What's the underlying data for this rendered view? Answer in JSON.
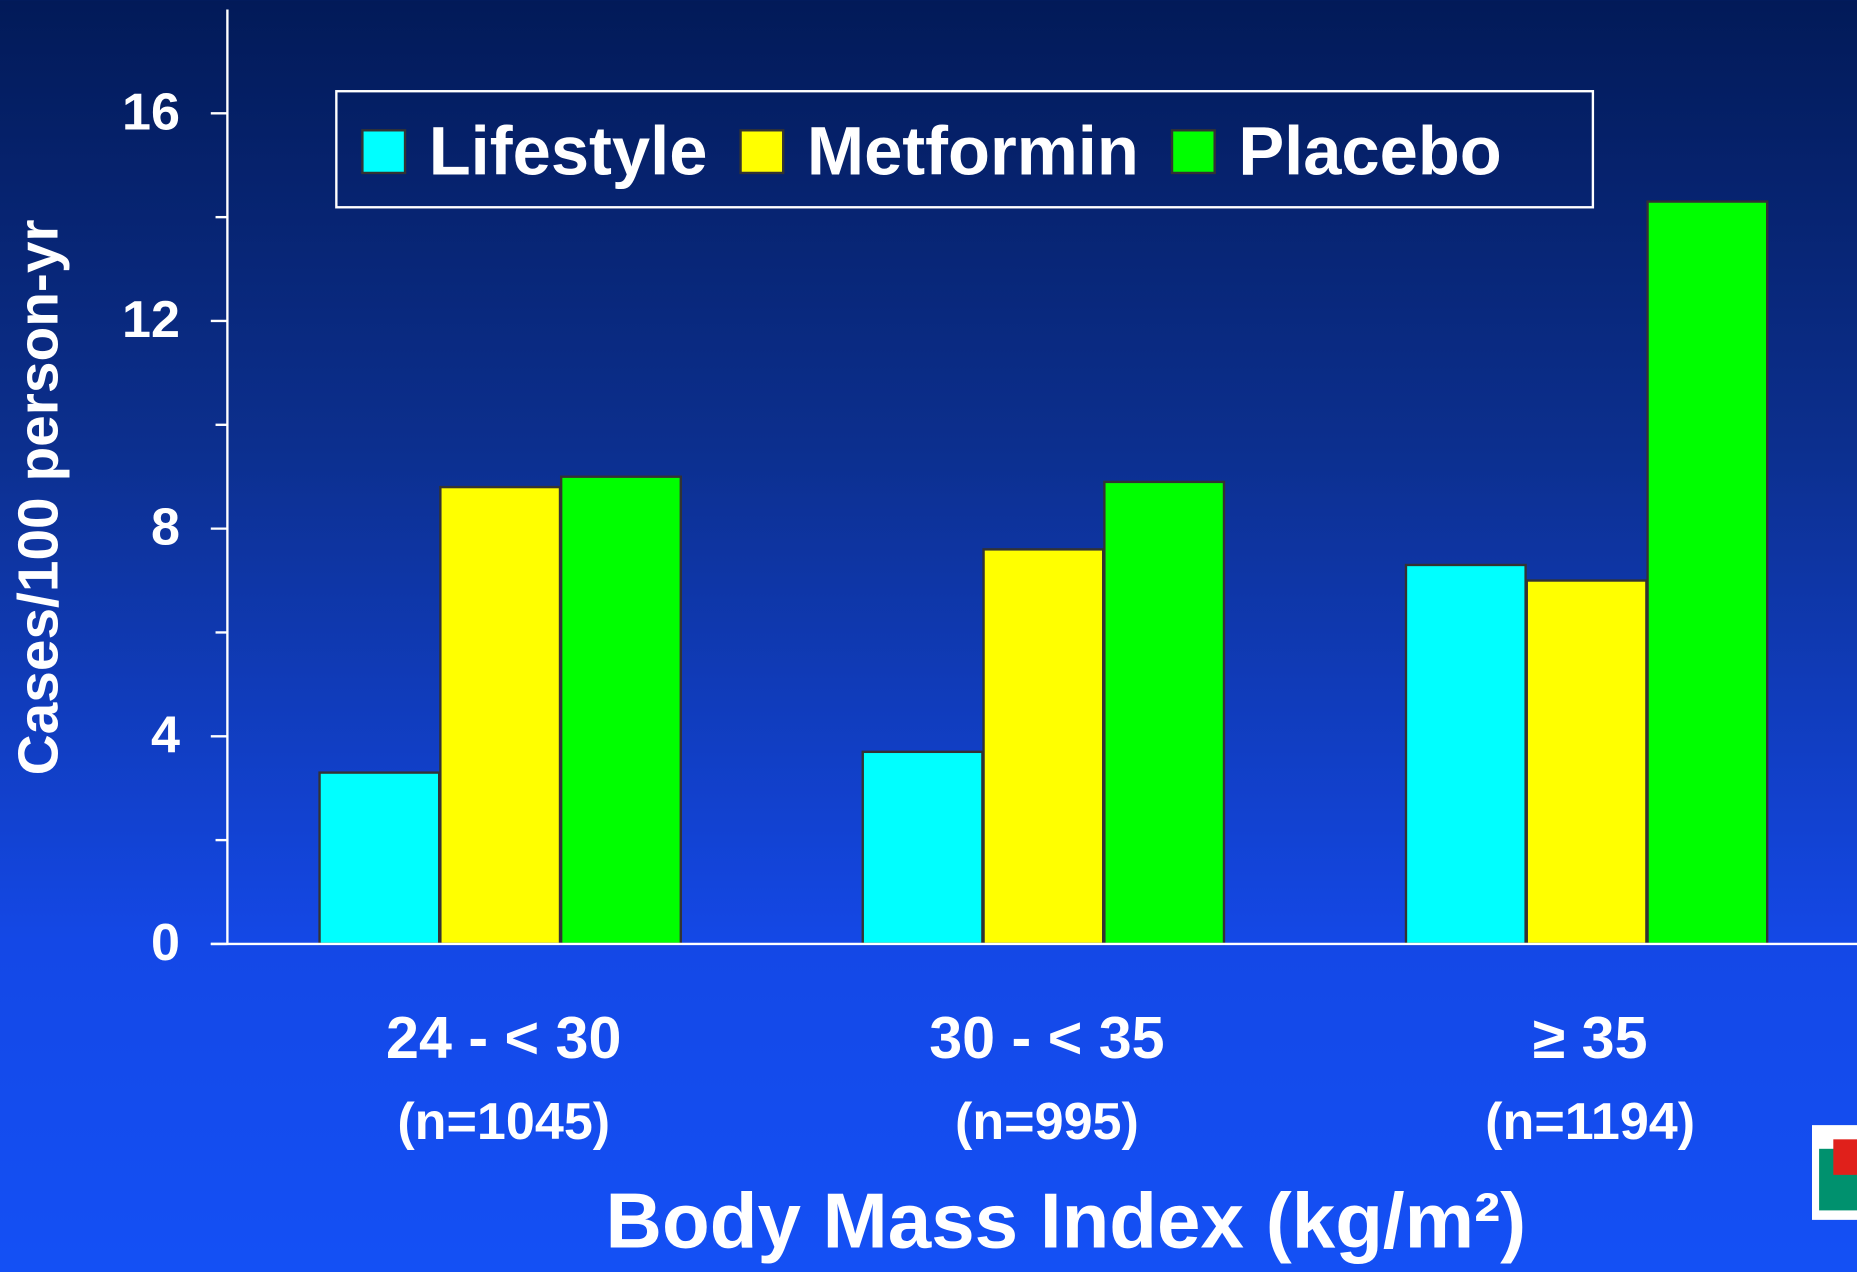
{
  "chart_data": {
    "type": "bar",
    "y_label": "Cases/100 person-yr",
    "x_label": "Body Mass Index (kg/m²)",
    "categories": [
      "24 - < 30",
      "30 - < 35",
      "≥ 35"
    ],
    "category_notes": [
      "(n=1045)",
      "(n=995)",
      "(n=1194)"
    ],
    "series": [
      {
        "name": "Lifestyle",
        "color": "#00ffff",
        "values": [
          3.3,
          3.7,
          7.3
        ]
      },
      {
        "name": "Metformin",
        "color": "#ffff00",
        "values": [
          8.8,
          7.6,
          7.0
        ]
      },
      {
        "name": "Placebo",
        "color": "#00ff00",
        "values": [
          9.0,
          8.9,
          14.3
        ]
      }
    ],
    "ylim": [
      0,
      18
    ],
    "yticks": [
      0,
      4,
      8,
      12,
      16
    ],
    "yminor": [
      2,
      6,
      10,
      14
    ],
    "legend": "top"
  }
}
